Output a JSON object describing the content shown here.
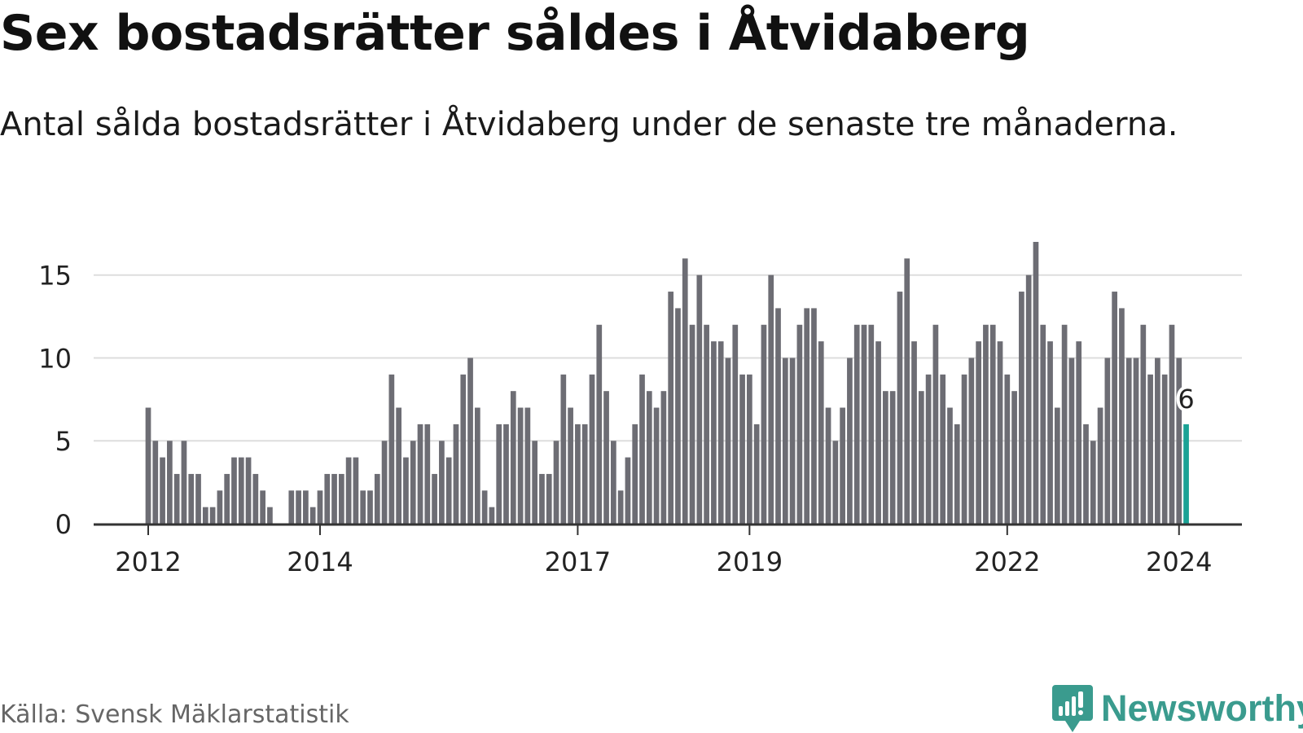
{
  "title": "Sex bostadsrätter såldes i Åtvidaberg",
  "subtitle": "Antal sålda bostadsrätter i Åtvidaberg under de senaste tre månaderna.",
  "source": "Källa: Svensk Mäklarstatistik",
  "brand": {
    "name": "Newsworthy",
    "icon": "newsworthy-logo-icon",
    "color": "#3a9b8e"
  },
  "colors": {
    "bar": "#6d6d74",
    "highlight": "#1aa295",
    "grid": "#dddddd",
    "axis": "#333333"
  },
  "chart_data": {
    "type": "bar",
    "title": "Sex bostadsrätter såldes i Åtvidaberg",
    "xlabel": "",
    "ylabel": "",
    "ylim": [
      0,
      17
    ],
    "yticks": [
      0,
      5,
      10,
      15
    ],
    "grid": true,
    "first_month": "2012-01",
    "x_ticks": [
      {
        "label": "2012",
        "month": "2012-01"
      },
      {
        "label": "2014",
        "month": "2014-01"
      },
      {
        "label": "2017",
        "month": "2017-01"
      },
      {
        "label": "2019",
        "month": "2019-01"
      },
      {
        "label": "2022",
        "month": "2022-01"
      },
      {
        "label": "2024",
        "month": "2024-01"
      }
    ],
    "values": [
      7,
      5,
      4,
      5,
      3,
      5,
      3,
      3,
      1,
      1,
      2,
      3,
      4,
      4,
      4,
      3,
      2,
      1,
      0,
      0,
      2,
      2,
      2,
      1,
      2,
      3,
      3,
      3,
      4,
      4,
      2,
      2,
      3,
      5,
      9,
      7,
      4,
      5,
      6,
      6,
      3,
      5,
      4,
      6,
      9,
      10,
      7,
      2,
      1,
      6,
      6,
      8,
      7,
      7,
      5,
      3,
      3,
      5,
      9,
      7,
      6,
      6,
      9,
      12,
      8,
      5,
      2,
      4,
      6,
      9,
      8,
      7,
      8,
      14,
      13,
      16,
      12,
      15,
      12,
      11,
      11,
      10,
      12,
      9,
      9,
      6,
      12,
      15,
      13,
      10,
      10,
      12,
      13,
      13,
      11,
      7,
      5,
      7,
      10,
      12,
      12,
      12,
      11,
      8,
      8,
      14,
      16,
      11,
      8,
      9,
      12,
      9,
      7,
      6,
      9,
      10,
      11,
      12,
      12,
      11,
      9,
      8,
      14,
      15,
      17,
      12,
      11,
      7,
      12,
      10,
      11,
      6,
      5,
      7,
      10,
      14,
      13,
      10,
      10,
      12,
      9,
      10,
      9,
      12,
      10,
      6
    ],
    "highlight": {
      "month": "2024-02",
      "value": 6,
      "label": "6"
    }
  }
}
